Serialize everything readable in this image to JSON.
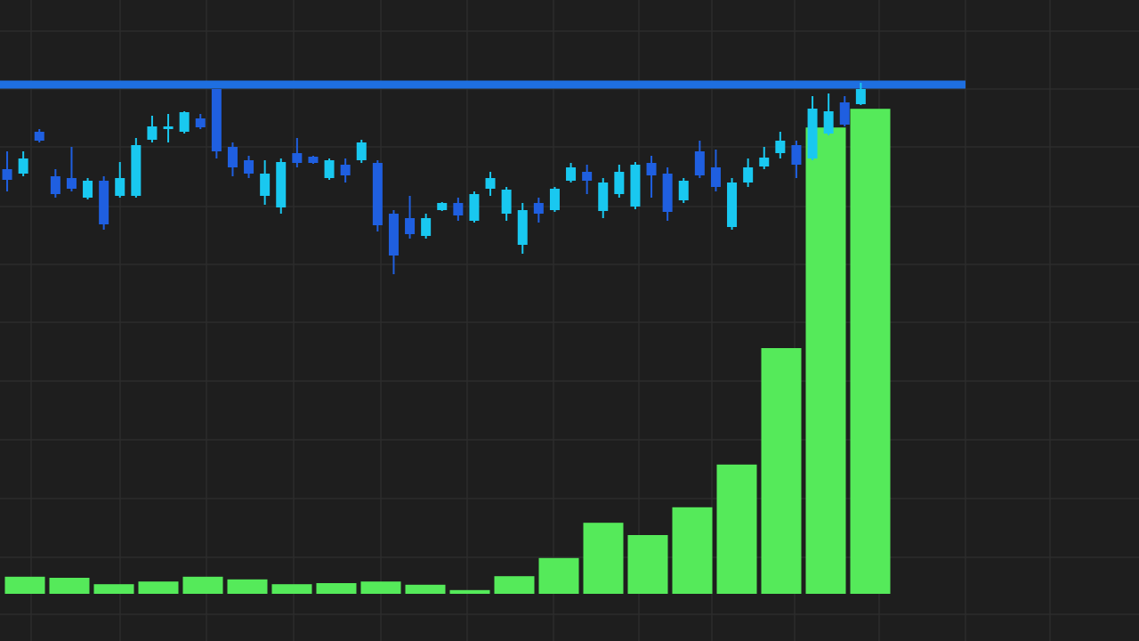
{
  "chart_data": [
    {
      "type": "candlestick",
      "categories": [
        null,
        null,
        null,
        null,
        null,
        null,
        null,
        null,
        null,
        null,
        null,
        null,
        null,
        null,
        null,
        null,
        null,
        null,
        null,
        null,
        null,
        null,
        null,
        null,
        null,
        null,
        null,
        null,
        null,
        null,
        null,
        null,
        null,
        null,
        null,
        null,
        null,
        null,
        null,
        null,
        null,
        null,
        null,
        null,
        null,
        null,
        null,
        null,
        null,
        null,
        null,
        null,
        null,
        null
      ],
      "open": [
        210,
        205,
        252,
        202,
        200,
        178,
        197,
        180,
        180,
        243,
        255,
        252,
        267,
        300,
        235,
        220,
        180,
        167,
        228,
        224,
        200,
        215,
        220,
        217,
        160,
        155,
        135,
        164,
        172,
        152,
        188,
        160,
        125,
        172,
        164,
        197,
        207,
        163,
        182,
        168,
        217,
        205,
        175,
        230,
        212,
        145,
        195,
        213,
        228,
        237,
        222,
        250,
        285,
        283
      ],
      "high": [
        230,
        230,
        255,
        210,
        235,
        200,
        202,
        218,
        245,
        270,
        272,
        275,
        272,
        300,
        240,
        225,
        220,
        222,
        245,
        225,
        222,
        222,
        243,
        220,
        164,
        180,
        160,
        173,
        178,
        185,
        207,
        190,
        172,
        178,
        190,
        217,
        215,
        200,
        215,
        218,
        225,
        212,
        200,
        242,
        232,
        200,
        222,
        235,
        252,
        242,
        292,
        295,
        292,
        307
      ],
      "low": [
        185,
        202,
        240,
        178,
        185,
        176,
        142,
        178,
        178,
        240,
        240,
        250,
        255,
        222,
        202,
        200,
        170,
        160,
        212,
        216,
        198,
        195,
        217,
        140,
        92,
        132,
        132,
        163,
        152,
        150,
        180,
        152,
        115,
        150,
        162,
        195,
        182,
        155,
        178,
        165,
        178,
        152,
        172,
        200,
        185,
        142,
        190,
        210,
        222,
        200,
        220,
        248,
        258,
        282
      ],
      "close": [
        198,
        222,
        242,
        182,
        188,
        197,
        148,
        200,
        237,
        258,
        258,
        274,
        257,
        230,
        212,
        205,
        205,
        218,
        217,
        217,
        220,
        203,
        240,
        147,
        113,
        137,
        155,
        172,
        158,
        182,
        200,
        187,
        164,
        160,
        188,
        212,
        197,
        195,
        207,
        215,
        203,
        162,
        197,
        203,
        190,
        195,
        212,
        223,
        242,
        215,
        278,
        275,
        260,
        300
      ],
      "up_color": "#19c8f0",
      "down_color": "#1f5fe0",
      "ylim": [
        0,
        400
      ],
      "resistance": 305,
      "resistance_color": "#1e6fe0"
    },
    {
      "type": "bar",
      "categories": [
        null,
        null,
        null,
        null,
        null,
        null,
        null,
        null,
        null,
        null,
        null,
        null,
        null,
        null,
        null,
        null,
        null,
        null,
        null,
        null
      ],
      "values": [
        3.2,
        3,
        1.8,
        2.3,
        3.2,
        2.7,
        1.8,
        2,
        2.3,
        1.7,
        0.7,
        3.3,
        6.7,
        13.3,
        11,
        16.2,
        24.2,
        46,
        87.3,
        90.8
      ],
      "color": "#55ea5a",
      "ylim": [
        0,
        100
      ]
    }
  ]
}
